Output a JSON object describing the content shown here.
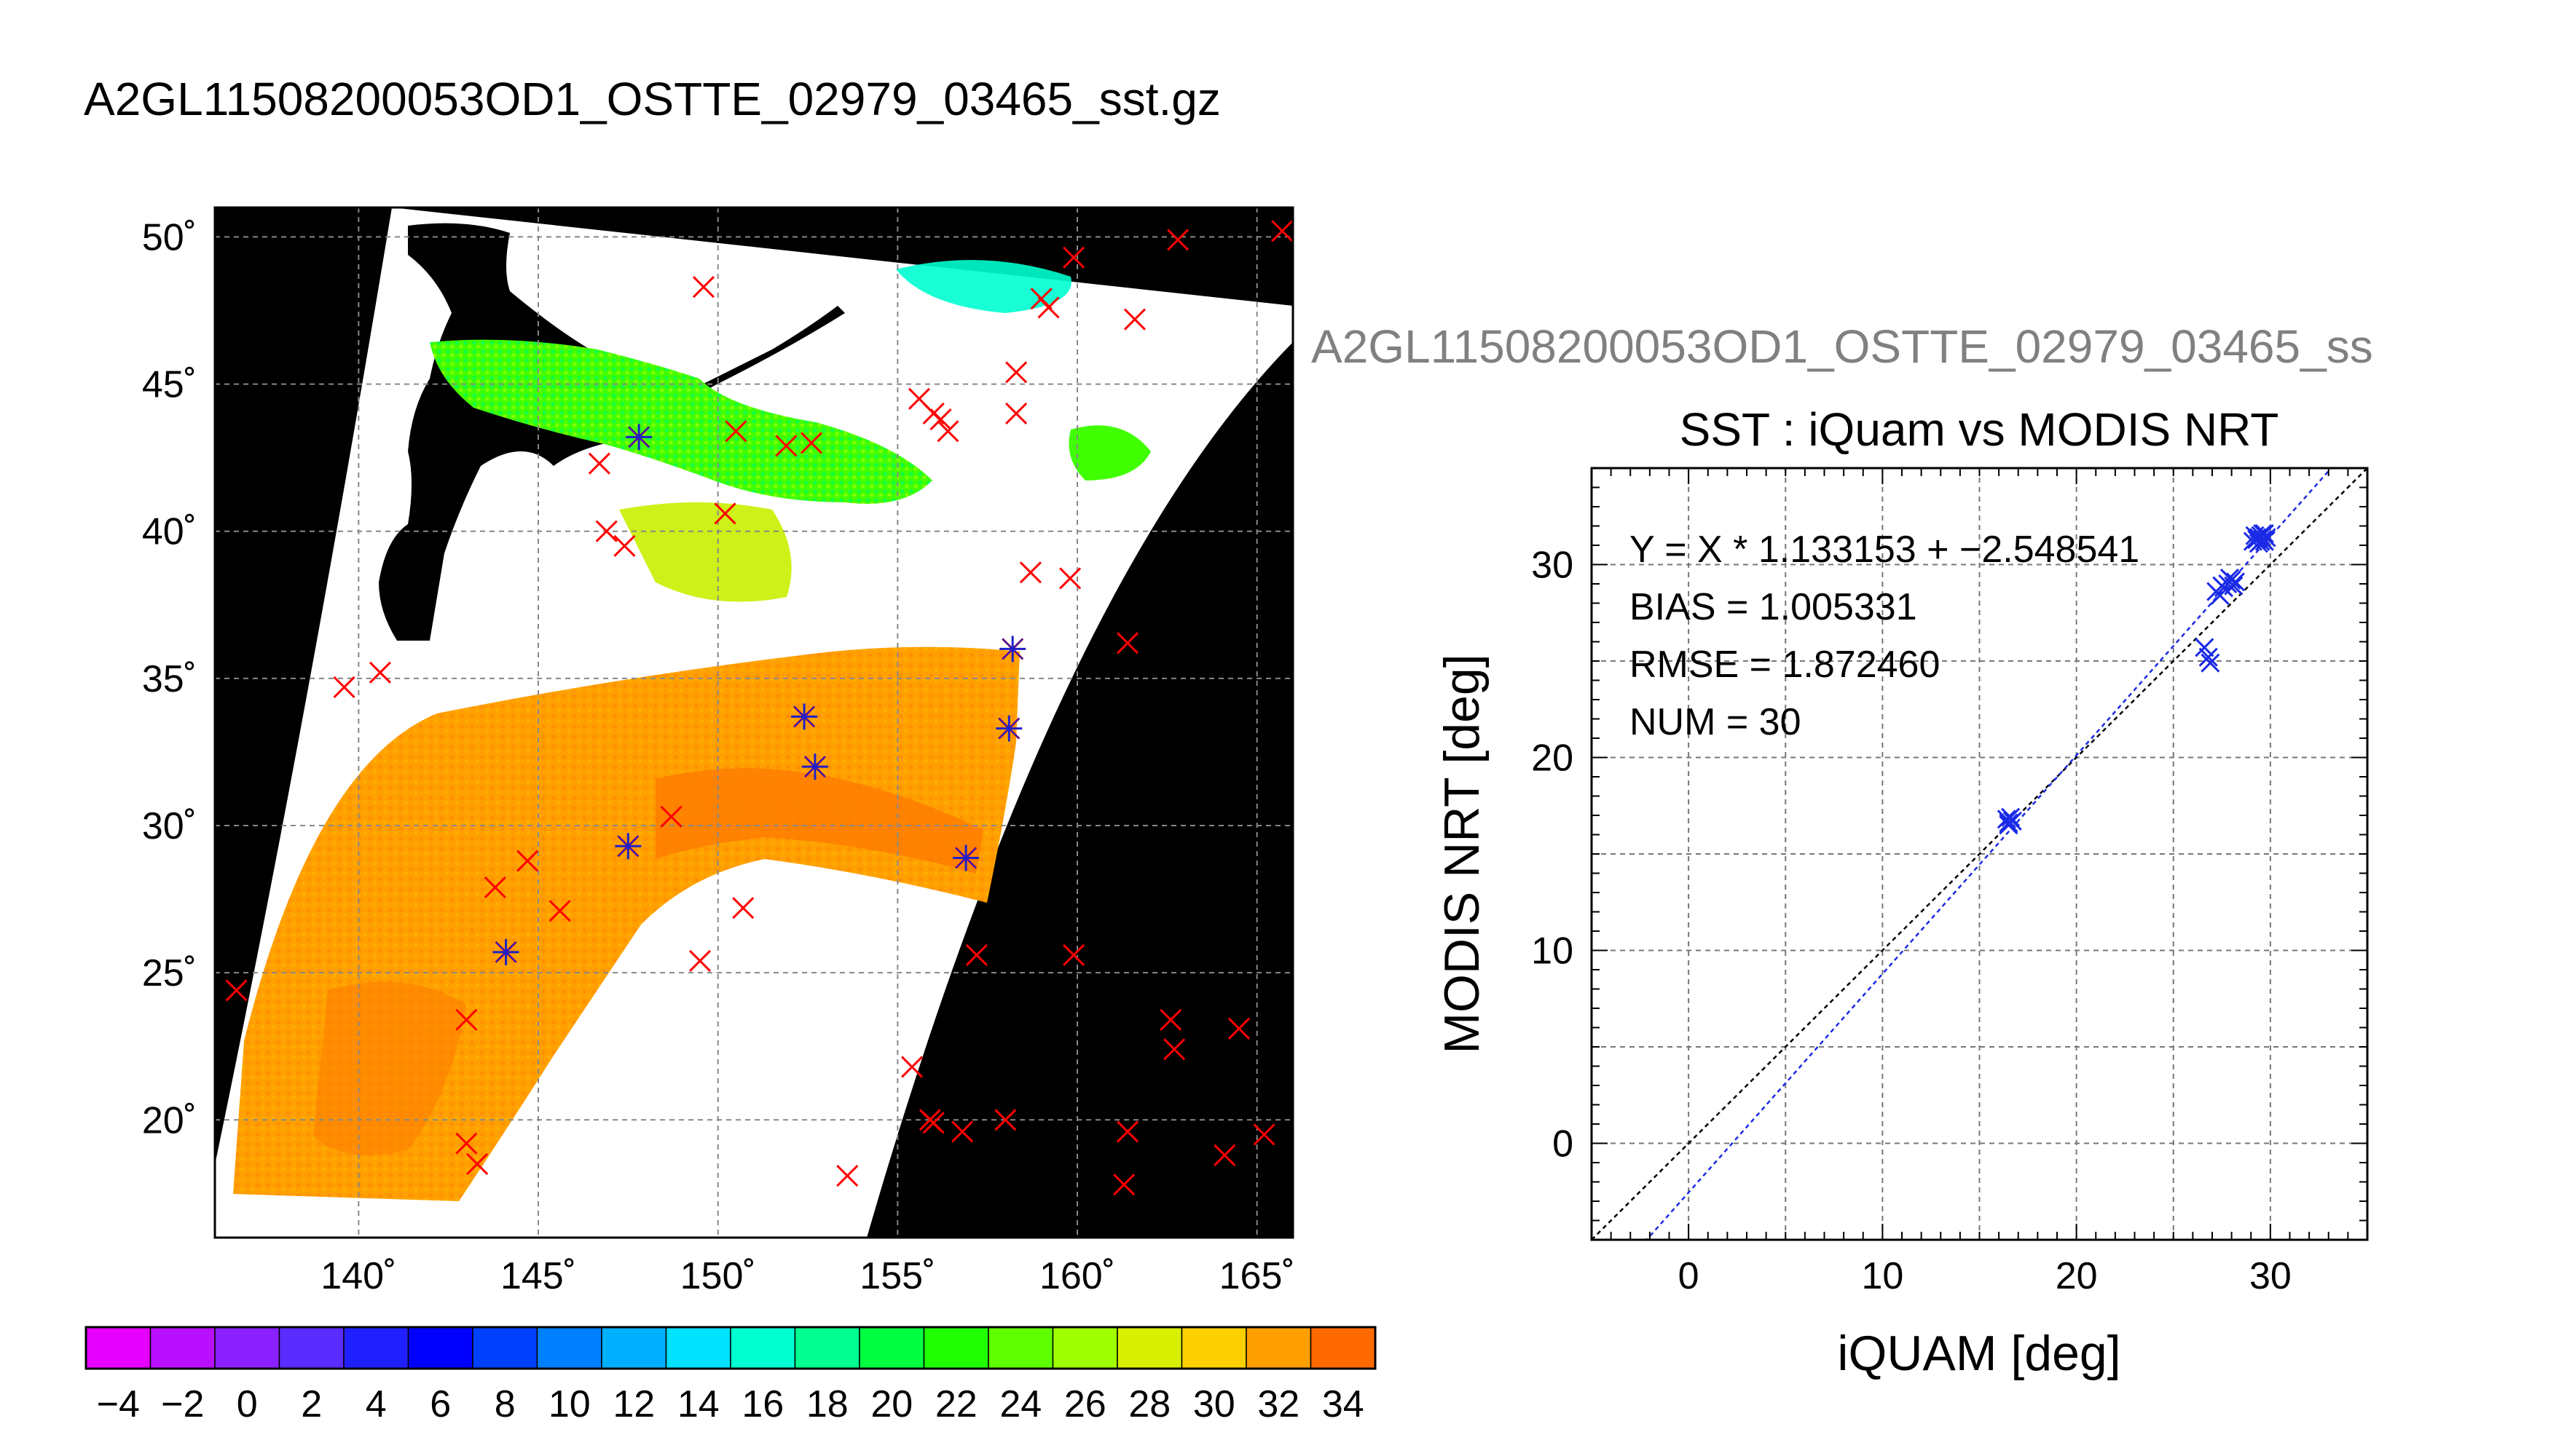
{
  "main_title": "A2GL11508200053OD1_OSTTE_02979_03465_sst.gz",
  "colors": {
    "land": "#000000",
    "swath_bg": "#ffffff",
    "grid": "#888888",
    "insitu_only": "#ff0000",
    "matchup": "#2020c8",
    "scatter": "#1a2ae6",
    "fit_line": "#1a2ae6",
    "one_to_one": "#000000",
    "subtitle": "#808080"
  },
  "chart_data": [
    {
      "type": "map",
      "name": "sst_swath_map",
      "lon_range": [
        136,
        166
      ],
      "lat_range": [
        16,
        51
      ],
      "xticks": [
        140,
        145,
        150,
        155,
        160,
        165
      ],
      "yticks": [
        20,
        25,
        30,
        35,
        40,
        45,
        50
      ],
      "xtick_labels": [
        "140˚",
        "145˚",
        "150˚",
        "155˚",
        "160˚",
        "165˚"
      ],
      "ytick_labels": [
        "20˚",
        "25˚",
        "30˚",
        "35˚",
        "40˚",
        "45˚",
        "50˚"
      ],
      "grid": true,
      "insitu_only_points": [
        [
          149.6,
          48.3
        ],
        [
          159.9,
          49.3
        ],
        [
          162.8,
          49.9
        ],
        [
          165.7,
          50.2
        ],
        [
          161.6,
          47.2
        ],
        [
          159.0,
          47.9
        ],
        [
          159.2,
          47.6
        ],
        [
          158.3,
          45.4
        ],
        [
          155.6,
          44.5
        ],
        [
          156.0,
          44.0
        ],
        [
          156.2,
          43.8
        ],
        [
          156.4,
          43.4
        ],
        [
          158.3,
          44.0
        ],
        [
          150.5,
          43.4
        ],
        [
          151.9,
          42.9
        ],
        [
          152.6,
          43.0
        ],
        [
          146.7,
          42.3
        ],
        [
          150.2,
          40.6
        ],
        [
          146.9,
          40.0
        ],
        [
          147.4,
          39.5
        ],
        [
          158.7,
          38.6
        ],
        [
          159.8,
          38.4
        ],
        [
          161.4,
          36.2
        ],
        [
          139.6,
          34.7
        ],
        [
          140.6,
          35.2
        ],
        [
          148.7,
          30.3
        ],
        [
          144.7,
          28.8
        ],
        [
          143.8,
          27.9
        ],
        [
          145.6,
          27.1
        ],
        [
          150.7,
          27.2
        ],
        [
          149.5,
          25.4
        ],
        [
          157.2,
          25.6
        ],
        [
          159.9,
          25.6
        ],
        [
          136.6,
          24.4
        ],
        [
          143.0,
          23.4
        ],
        [
          162.6,
          23.4
        ],
        [
          164.5,
          23.1
        ],
        [
          162.7,
          22.4
        ],
        [
          155.4,
          21.8
        ],
        [
          155.9,
          20.0
        ],
        [
          156.0,
          19.9
        ],
        [
          156.8,
          19.6
        ],
        [
          158.0,
          20.0
        ],
        [
          161.4,
          19.6
        ],
        [
          165.2,
          19.5
        ],
        [
          164.1,
          18.8
        ],
        [
          143.0,
          19.2
        ],
        [
          143.3,
          18.5
        ],
        [
          153.6,
          18.1
        ],
        [
          161.3,
          17.8
        ]
      ],
      "matchup_points": [
        [
          147.8,
          43.2
        ],
        [
          158.2,
          36.0
        ],
        [
          152.4,
          33.7
        ],
        [
          158.1,
          33.3
        ],
        [
          152.7,
          32.0
        ],
        [
          147.5,
          29.3
        ],
        [
          156.9,
          28.9
        ],
        [
          144.1,
          25.7
        ]
      ],
      "colorbar": {
        "range": [
          -5,
          35
        ],
        "step": 2,
        "tick_labels": [
          "−4",
          "−2",
          "0",
          "2",
          "4",
          "6",
          "8",
          "10",
          "12",
          "14",
          "16",
          "18",
          "20",
          "22",
          "24",
          "26",
          "28",
          "30",
          "32",
          "34"
        ],
        "colors": [
          "#e600ff",
          "#b810ff",
          "#8a20ff",
          "#5a2cff",
          "#2020ff",
          "#0000ff",
          "#0040ff",
          "#0080ff",
          "#00b0ff",
          "#00e0ff",
          "#00ffd0",
          "#00ff90",
          "#00ff40",
          "#20ff00",
          "#60ff00",
          "#a0ff00",
          "#d8f000",
          "#ffd000",
          "#ffa000",
          "#ff6a00",
          "#ff2000"
        ]
      }
    },
    {
      "type": "scatter",
      "name": "iquam_vs_modis_nrt",
      "file_label": "A2GL11508200053OD1_OSTTE_02979_03465_ss",
      "title": "SST : iQuam vs MODIS NRT",
      "xlabel": "iQUAM [deg]",
      "ylabel": "MODIS NRT [deg]",
      "xlim": [
        -5,
        35
      ],
      "ylim": [
        -5,
        35
      ],
      "xticks": [
        0,
        10,
        20,
        30
      ],
      "yticks": [
        0,
        10,
        20,
        30
      ],
      "grid": true,
      "stats": [
        "Y = X * 1.133153 + −2.548541",
        "BIAS = 1.005331",
        "RMSE = 1.872460",
        "NUM = 30"
      ],
      "fit": {
        "slope": 1.133153,
        "intercept": -2.548541
      },
      "points": [
        [
          16.4,
          16.8
        ],
        [
          16.5,
          16.6
        ],
        [
          16.6,
          16.9
        ],
        [
          16.7,
          16.7
        ],
        [
          16.5,
          16.5
        ],
        [
          26.6,
          25.7
        ],
        [
          26.8,
          25.2
        ],
        [
          26.9,
          24.9
        ],
        [
          27.2,
          28.6
        ],
        [
          27.4,
          28.4
        ],
        [
          27.6,
          28.8
        ],
        [
          27.8,
          29.0
        ],
        [
          28.0,
          29.2
        ],
        [
          28.2,
          29.1
        ],
        [
          27.5,
          28.9
        ],
        [
          27.9,
          29.3
        ],
        [
          28.1,
          28.9
        ],
        [
          29.1,
          31.2
        ],
        [
          29.3,
          31.4
        ],
        [
          29.5,
          31.5
        ],
        [
          29.6,
          31.3
        ],
        [
          29.7,
          31.6
        ],
        [
          29.4,
          31.1
        ],
        [
          29.2,
          31.5
        ],
        [
          29.8,
          31.4
        ],
        [
          29.5,
          31.2
        ],
        [
          29.6,
          31.6
        ],
        [
          29.4,
          31.4
        ],
        [
          29.7,
          31.2
        ],
        [
          29.3,
          31.3
        ]
      ]
    }
  ]
}
